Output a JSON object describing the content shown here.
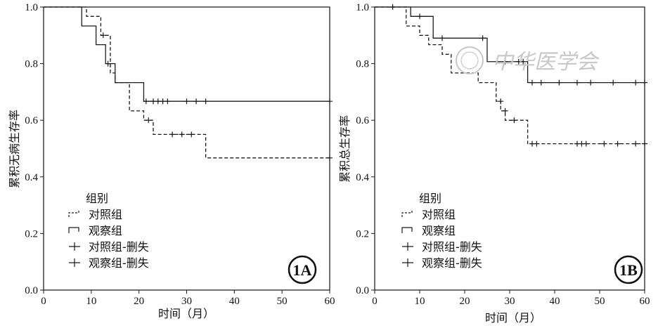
{
  "chart_data": [
    {
      "type": "line",
      "subtype": "kaplan-meier",
      "panel_label": "1A",
      "xlabel": "时间（月）",
      "ylabel": "累积无病生存率",
      "xlim": [
        0,
        60
      ],
      "ylim": [
        0,
        1.0
      ],
      "xticks": [
        "0",
        "10",
        "20",
        "30",
        "40",
        "50",
        "60"
      ],
      "yticks": [
        "0.0",
        "0.2",
        "0.4",
        "0.6",
        "0.8",
        "1.0"
      ],
      "grid": false,
      "legend": {
        "title": "组别",
        "position": "bottom-left",
        "entries": [
          "对照组",
          "观察组",
          "对照组-删失",
          "观察组-删失"
        ]
      },
      "series": [
        {
          "name": "对照组",
          "style": "dashed",
          "x": [
            0,
            9,
            12,
            14,
            15,
            18,
            21,
            23,
            34,
            60
          ],
          "y": [
            1.0,
            0.967,
            0.9,
            0.767,
            0.733,
            0.633,
            0.6,
            0.55,
            0.467,
            0.467
          ],
          "censored_x": [
            12.5,
            22,
            27,
            29,
            31,
            60
          ],
          "censored_y": [
            0.9,
            0.6,
            0.55,
            0.55,
            0.55,
            0.467
          ]
        },
        {
          "name": "观察组",
          "style": "solid",
          "x": [
            0,
            8,
            11,
            13,
            15,
            21,
            60
          ],
          "y": [
            1.0,
            0.933,
            0.867,
            0.8,
            0.733,
            0.667,
            0.667
          ],
          "censored_x": [
            13.5,
            21.5,
            23,
            24,
            25,
            26,
            30,
            32,
            34,
            60
          ],
          "censored_y": [
            0.8,
            0.667,
            0.667,
            0.667,
            0.667,
            0.667,
            0.667,
            0.667,
            0.667,
            0.667
          ]
        }
      ]
    },
    {
      "type": "line",
      "subtype": "kaplan-meier",
      "panel_label": "1B",
      "xlabel": "时间（月）",
      "ylabel": "累积总生存率",
      "xlim": [
        0,
        60
      ],
      "ylim": [
        0,
        1.0
      ],
      "xticks": [
        "0",
        "10",
        "20",
        "30",
        "40",
        "50",
        "60"
      ],
      "yticks": [
        "0.0",
        "0.2",
        "0.4",
        "0.6",
        "0.8",
        "1.0"
      ],
      "grid": false,
      "legend": {
        "title": "组别",
        "position": "bottom-left",
        "entries": [
          "对照组",
          "观察组",
          "对照组-删失",
          "观察组-删失"
        ]
      },
      "series": [
        {
          "name": "对照组",
          "style": "dashed",
          "x": [
            0,
            7,
            10,
            12,
            15,
            17,
            23,
            27,
            28,
            29,
            30,
            34,
            60
          ],
          "y": [
            1.0,
            0.933,
            0.9,
            0.867,
            0.833,
            0.767,
            0.733,
            0.667,
            0.633,
            0.6,
            0.6,
            0.517,
            0.517
          ],
          "censored_x": [
            4,
            28,
            29,
            31,
            35,
            36,
            45,
            46,
            47,
            51,
            54,
            58,
            60
          ],
          "censored_y": [
            1.0,
            0.667,
            0.633,
            0.6,
            0.517,
            0.517,
            0.517,
            0.517,
            0.517,
            0.517,
            0.517,
            0.517,
            0.517
          ]
        },
        {
          "name": "观察组",
          "style": "solid",
          "x": [
            0,
            8,
            13,
            25,
            34,
            60
          ],
          "y": [
            1.0,
            0.967,
            0.89,
            0.807,
            0.733,
            0.733
          ],
          "censored_x": [
            10,
            15,
            24,
            29,
            32,
            33,
            35,
            37,
            41,
            45,
            48,
            53,
            58,
            60
          ],
          "censored_y": [
            0.967,
            0.89,
            0.89,
            0.807,
            0.807,
            0.807,
            0.733,
            0.733,
            0.733,
            0.733,
            0.733,
            0.733,
            0.733,
            0.733
          ]
        }
      ]
    }
  ],
  "watermark": "中华医学会",
  "colors": {
    "line": "#1a1a1a",
    "watermark": "#c8c8c8"
  }
}
